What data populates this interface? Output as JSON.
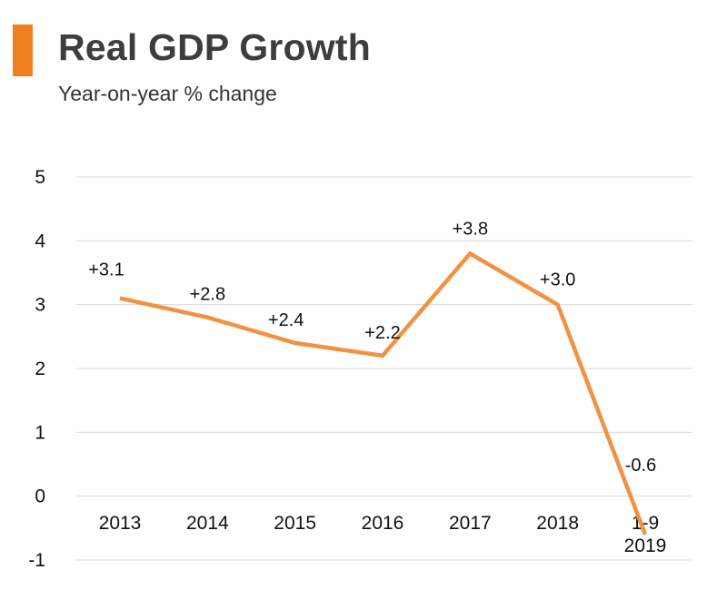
{
  "header": {
    "accent_color": "#f07f1f"
  },
  "chart_data": {
    "type": "line",
    "title": "Real GDP Growth",
    "subtitle": "Year-on-year % change",
    "xlabel": "",
    "ylabel": "",
    "categories": [
      "2013",
      "2014",
      "2015",
      "2016",
      "2017",
      "2018",
      "1-9\n2019"
    ],
    "category_lines": [
      [
        "2013"
      ],
      [
        "2014"
      ],
      [
        "2015"
      ],
      [
        "2016"
      ],
      [
        "2017"
      ],
      [
        "2018"
      ],
      [
        "1-9",
        "2019"
      ]
    ],
    "series": [
      {
        "name": "Real GDP growth",
        "values": [
          3.1,
          2.8,
          2.4,
          2.2,
          3.8,
          3.0,
          -0.6
        ],
        "labels": [
          "+3.1",
          "+2.8",
          "+2.4",
          "+2.2",
          "+3.8",
          "+3.0",
          "-0.6"
        ],
        "color": "#f29141"
      }
    ],
    "yticks": [
      "5",
      "4",
      "3",
      "2",
      "1",
      "0",
      "-1"
    ],
    "ytick_values": [
      5,
      4,
      3,
      2,
      1,
      0,
      -1
    ],
    "ylim": [
      -1,
      5
    ],
    "grid": true,
    "grid_color": "#d9d9d9"
  }
}
